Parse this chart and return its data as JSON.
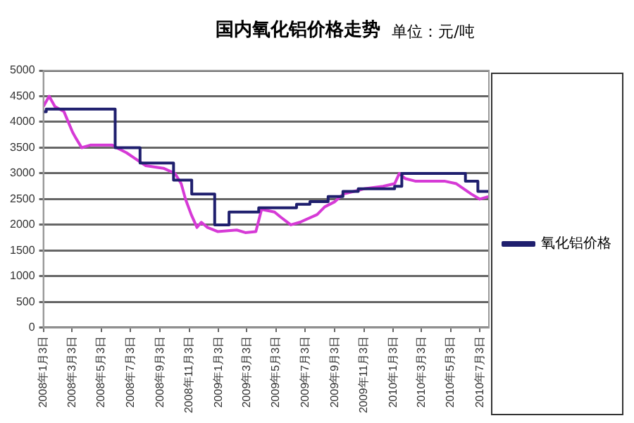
{
  "chart_data": {
    "type": "line",
    "title": "国内氧化铝价格走势",
    "subtitle": "单位：元/吨",
    "xlim": [
      "2008-01-03",
      "2010-07-22"
    ],
    "xticks": [
      {
        "value": "2008-01-03",
        "label": "2008年1月3日"
      },
      {
        "value": "2008-03-03",
        "label": "2008年3月3日"
      },
      {
        "value": "2008-05-03",
        "label": "2008年5月3日"
      },
      {
        "value": "2008-07-03",
        "label": "2008年7月3日"
      },
      {
        "value": "2008-09-03",
        "label": "2008年9月3日"
      },
      {
        "value": "2008-11-03",
        "label": "2008年11月3日"
      },
      {
        "value": "2009-01-03",
        "label": "2009年1月3日"
      },
      {
        "value": "2009-03-03",
        "label": "2009年3月3日"
      },
      {
        "value": "2009-05-03",
        "label": "2009年5月3日"
      },
      {
        "value": "2009-07-03",
        "label": "2009年7月3日"
      },
      {
        "value": "2009-09-03",
        "label": "2009年9月3日"
      },
      {
        "value": "2009-11-03",
        "label": "2009年11月3日"
      },
      {
        "value": "2010-01-03",
        "label": "2010年1月3日"
      },
      {
        "value": "2010-03-03",
        "label": "2010年3月3日"
      },
      {
        "value": "2010-05-03",
        "label": "2010年5月3日"
      },
      {
        "value": "2010-07-03",
        "label": "2010年7月3日"
      }
    ],
    "ylim": [
      0,
      5000
    ],
    "yticks": [
      0,
      500,
      1000,
      1500,
      2000,
      2500,
      3000,
      3500,
      4000,
      4500,
      5000
    ],
    "grid": "y",
    "legend": "right",
    "marker": "none",
    "series": [
      {
        "name": "氧化铝价格",
        "type": "step",
        "color": "#1f1f6e",
        "x": [
          "2008-01-03",
          "2008-01-09",
          "2008-06-01",
          "2008-07-23",
          "2008-10-01",
          "2008-11-08",
          "2008-12-26",
          "2009-01-25",
          "2009-03-28",
          "2009-06-15",
          "2009-07-13",
          "2009-08-20",
          "2009-09-20",
          "2009-10-22",
          "2010-01-06",
          "2010-01-21",
          "2010-06-03",
          "2010-06-29",
          "2010-07-22"
        ],
        "values": [
          4200,
          4250,
          3500,
          3200,
          2870,
          2600,
          2000,
          2250,
          2330,
          2400,
          2450,
          2550,
          2650,
          2700,
          2750,
          3000,
          2850,
          2650,
          2650
        ]
      },
      {
        "color": "#d63ad6",
        "x": [
          "2008-01-03",
          "2008-01-15",
          "2008-01-27",
          "2008-02-15",
          "2008-03-04",
          "2008-03-10",
          "2008-03-23",
          "2008-04-10",
          "2008-05-26",
          "2008-06-04",
          "2008-06-25",
          "2008-07-11",
          "2008-08-04",
          "2008-09-10",
          "2008-10-04",
          "2008-10-17",
          "2008-10-26",
          "2008-11-07",
          "2008-11-19",
          "2008-11-28",
          "2008-12-11",
          "2009-01-01",
          "2009-02-10",
          "2009-02-28",
          "2009-03-22",
          "2009-04-03",
          "2009-04-30",
          "2009-05-13",
          "2009-06-03",
          "2009-06-22",
          "2009-07-28",
          "2009-08-13",
          "2009-09-03",
          "2009-09-21",
          "2009-10-13",
          "2009-11-03",
          "2009-12-13",
          "2010-01-06",
          "2010-01-16",
          "2010-01-28",
          "2010-02-18",
          "2010-04-20",
          "2010-05-15",
          "2010-06-15",
          "2010-07-03",
          "2010-07-21"
        ],
        "values": [
          4300,
          4500,
          4300,
          4200,
          3800,
          3700,
          3500,
          3550,
          3550,
          3500,
          3400,
          3300,
          3150,
          3100,
          3000,
          2800,
          2500,
          2200,
          1950,
          2050,
          1950,
          1870,
          1900,
          1850,
          1870,
          2300,
          2250,
          2150,
          2000,
          2050,
          2200,
          2350,
          2450,
          2600,
          2650,
          2700,
          2750,
          2800,
          3000,
          2900,
          2850,
          2850,
          2800,
          2600,
          2500,
          2550
        ]
      }
    ]
  }
}
